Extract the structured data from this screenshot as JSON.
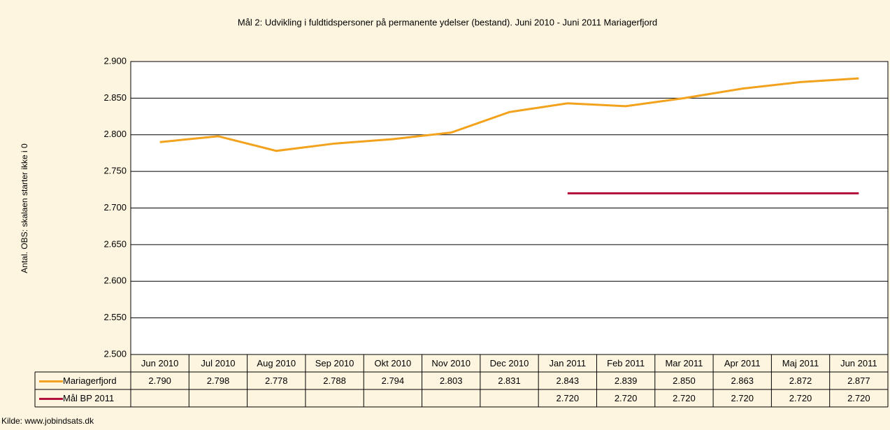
{
  "chart_data": {
    "type": "line",
    "title": "Mål 2: Udvikling i fuldtidspersoner på permanente ydelser (bestand). Juni 2010 - Juni 2011 Mariagerfjord",
    "y_label": "Antal. OBS: skalaen starter ikke i 0",
    "source": "Kilde: www.jobindsats.dk",
    "categories": [
      "Jun 2010",
      "Jul 2010",
      "Aug 2010",
      "Sep 2010",
      "Okt 2010",
      "Nov 2010",
      "Dec 2010",
      "Jan 2011",
      "Feb 2011",
      "Mar 2011",
      "Apr 2011",
      "Maj 2011",
      "Jun 2011"
    ],
    "series": [
      {
        "name": "Mariagerfjord",
        "color": "#f2a21c",
        "values": [
          2790,
          2798,
          2778,
          2788,
          2794,
          2803,
          2831,
          2843,
          2839,
          2850,
          2863,
          2872,
          2877
        ],
        "value_labels": [
          "2.790",
          "2.798",
          "2.778",
          "2.788",
          "2.794",
          "2.803",
          "2.831",
          "2.843",
          "2.839",
          "2.850",
          "2.863",
          "2.872",
          "2.877"
        ]
      },
      {
        "name": "Mål BP 2011",
        "color": "#b5123e",
        "values": [
          null,
          null,
          null,
          null,
          null,
          null,
          null,
          2720,
          2720,
          2720,
          2720,
          2720,
          2720
        ],
        "value_labels": [
          null,
          null,
          null,
          null,
          null,
          null,
          null,
          "2.720",
          "2.720",
          "2.720",
          "2.720",
          "2.720",
          "2.720"
        ]
      }
    ],
    "ylim": [
      2500,
      2900
    ],
    "yticks": [
      {
        "value": 2500,
        "label": "2.500"
      },
      {
        "value": 2550,
        "label": "2.550"
      },
      {
        "value": 2600,
        "label": "2.600"
      },
      {
        "value": 2650,
        "label": "2.650"
      },
      {
        "value": 2700,
        "label": "2.700"
      },
      {
        "value": 2750,
        "label": "2.750"
      },
      {
        "value": 2800,
        "label": "2.800"
      },
      {
        "value": 2850,
        "label": "2.850"
      },
      {
        "value": 2900,
        "label": "2.900"
      }
    ],
    "grid": true
  }
}
